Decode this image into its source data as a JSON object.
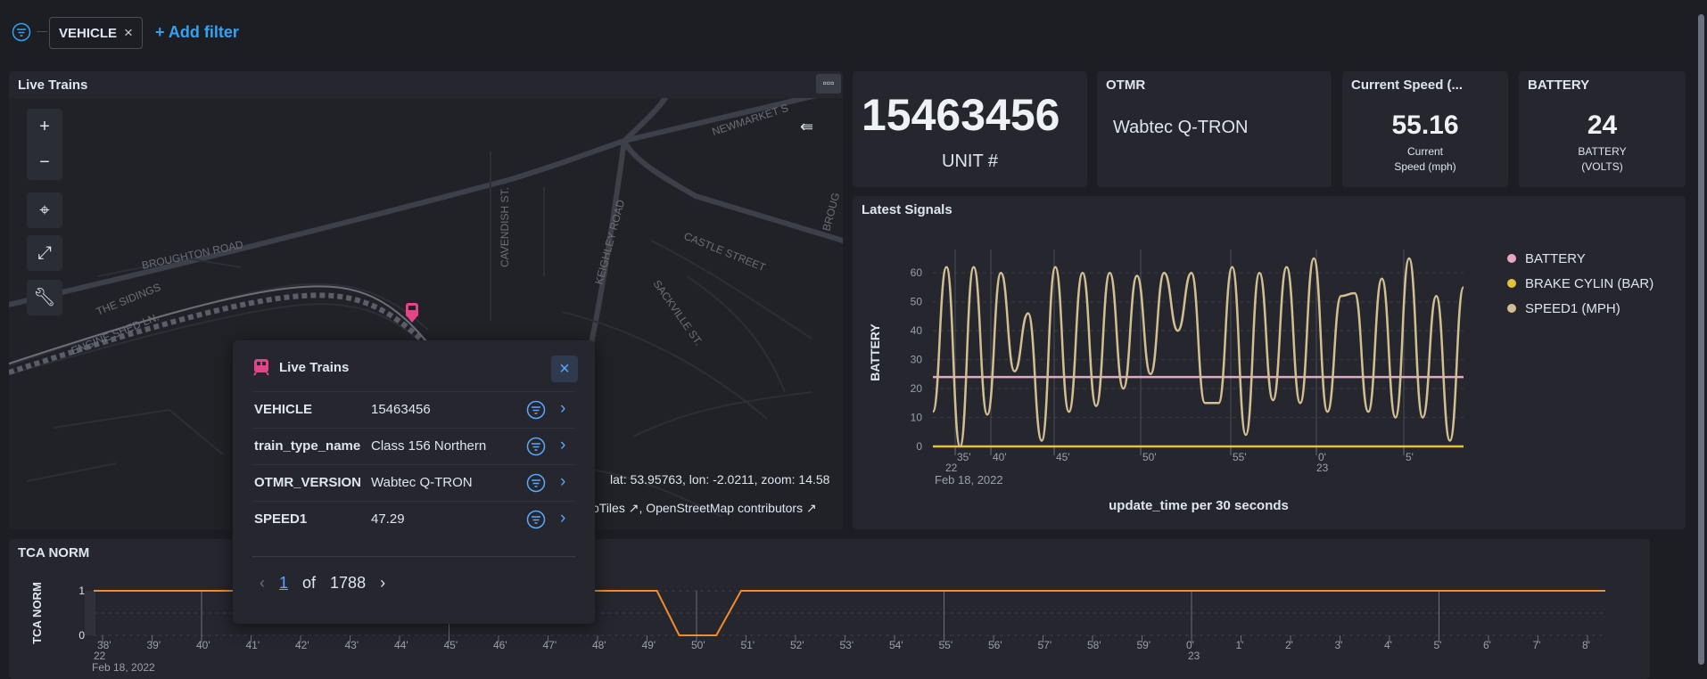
{
  "filter_bar": {
    "pill_label": "VEHICLE",
    "pill_close": "×",
    "add_filter": "+ Add filter"
  },
  "live_trains": {
    "title": "Live Trains",
    "coords_text": "lat: 53.95763, lon: -2.0211, zoom: 14.58",
    "attribution": "pTiles ↗, OpenStreetMap contributors ↗",
    "street_labels": [
      "NEWMARKET S",
      "BROUGHTON ROAD",
      "THE SIDINGS",
      "ENGINE SHED LN.",
      "CAVENDISH ST.",
      "KEIGHLEY ROAD",
      "CASTLE STREET",
      "SACKVILLE ST.",
      "BROUG"
    ],
    "controls": {
      "zoom_in": "+",
      "zoom_out": "−"
    }
  },
  "popup": {
    "title": "Live Trains",
    "rows": [
      {
        "key": "VEHICLE",
        "value": "15463456"
      },
      {
        "key": "train_type_name",
        "value": "Class 156 Northern"
      },
      {
        "key": "OTMR_VERSION",
        "value": "Wabtec Q-TRON"
      },
      {
        "key": "SPEED1",
        "value": "47.29"
      }
    ],
    "page_current": "1",
    "page_of": "of",
    "page_total": "1788"
  },
  "metrics": {
    "unit": {
      "value": "15463456",
      "label": "UNIT #"
    },
    "otmr": {
      "title": "OTMR",
      "value": "Wabtec Q-TRON"
    },
    "speed": {
      "title": "Current Speed (...",
      "value": "55.16",
      "sub1": "Current",
      "sub2": "Speed (mph)"
    },
    "battery": {
      "title": "BATTERY",
      "value": "24",
      "sub1": "BATTERY",
      "sub2": "(VOLTS)"
    }
  },
  "latest_signals": {
    "title": "Latest Signals",
    "legend": [
      {
        "name": "BATTERY",
        "color": "#e8a7c3"
      },
      {
        "name": "BRAKE CYLIN (BAR)",
        "color": "#e2c33a"
      },
      {
        "name": "SPEED1 (MPH)",
        "color": "#d2bf91"
      }
    ]
  },
  "tca_norm": {
    "title": "TCA NORM"
  },
  "chart_data": [
    {
      "type": "line",
      "title": "Latest Signals",
      "xlabel": "update_time per 30 seconds",
      "ylabel": "BATTERY",
      "ylim": [
        0,
        65
      ],
      "yticks": [
        "0",
        "10",
        "20",
        "30",
        "40",
        "50",
        "60"
      ],
      "xticks": [
        "35'",
        "40'",
        "45'",
        "50'",
        "55'",
        "0'",
        "5'"
      ],
      "xtick_sub": {
        "first": "22",
        "zero": "23"
      },
      "date_label": "Feb 18, 2022",
      "series": [
        {
          "name": "BATTERY",
          "color": "#e8a7c3",
          "values": [
            24,
            24
          ]
        },
        {
          "name": "BRAKE CYLIN (BAR)",
          "color": "#e2c33a",
          "values": [
            0,
            0
          ]
        },
        {
          "name": "SPEED1 (MPH)",
          "color": "#d2bf91",
          "values": [
            12,
            62,
            0,
            62,
            11,
            60,
            26,
            46,
            2,
            62,
            12,
            60,
            14,
            60,
            20,
            59,
            25,
            60,
            40,
            60,
            15,
            15,
            62,
            4,
            60,
            16,
            62,
            15,
            65,
            12,
            52,
            53,
            12,
            58,
            10,
            65,
            10,
            52,
            2,
            55
          ]
        }
      ]
    },
    {
      "type": "line",
      "title": "TCA NORM",
      "ylabel": "TCA NORM",
      "ylim": [
        0,
        1
      ],
      "yticks": [
        "0",
        "0.5",
        "1"
      ],
      "xticks": [
        "38'",
        "39'",
        "40'",
        "41'",
        "42'",
        "43'",
        "44'",
        "45'",
        "46'",
        "47'",
        "48'",
        "49'",
        "50'",
        "51'",
        "52'",
        "53'",
        "54'",
        "55'",
        "56'",
        "57'",
        "58'",
        "59'",
        "0'",
        "1'",
        "2'",
        "3'",
        "4'",
        "5'",
        "6'",
        "7'",
        "8'"
      ],
      "xtick_sub": {
        "first": "22",
        "zero": "23"
      },
      "date_label": "Feb 18, 2022",
      "series": [
        {
          "name": "TCA NORM",
          "color": "#f08c2e",
          "values": [
            1,
            1,
            1,
            1,
            1,
            1,
            1,
            1,
            1,
            1,
            1,
            1,
            0,
            0,
            1,
            1,
            1,
            1,
            1,
            1,
            1,
            1,
            1,
            1,
            1,
            1,
            1,
            1,
            1,
            1,
            1
          ]
        }
      ]
    }
  ]
}
